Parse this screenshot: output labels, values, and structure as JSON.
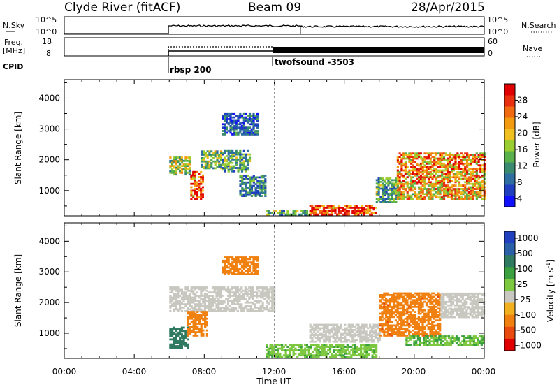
{
  "header": {
    "station": "Clyde River (fitACF)",
    "beam": "Beam 09",
    "date": "28/Apr/2015"
  },
  "noise_panel": {
    "left_label": "N.Sky",
    "left_ticks": [
      "10^5",
      "10^0"
    ],
    "right_label": "N.Search",
    "right_ticks": [
      "10^5",
      "10^0"
    ]
  },
  "freq_panel": {
    "left_label_1": "Freq.",
    "left_label_2": "[MHz]",
    "left_ticks": [
      "18",
      "8"
    ],
    "right_label": "Nave",
    "right_ticks": [
      "60",
      "0"
    ]
  },
  "cpid": {
    "label": "CPID",
    "modes": [
      {
        "name": "rbsp 200",
        "start": 6.0
      },
      {
        "name": "twofsound -3503",
        "start": 12.0
      }
    ]
  },
  "x_axis": {
    "label": "Time UT",
    "ticks": [
      "00:00",
      "04:00",
      "08:00",
      "12:00",
      "16:00",
      "20:00",
      "00:00"
    ],
    "range": [
      0,
      24
    ]
  },
  "y_axis": {
    "label": "Slant Range [km]",
    "ticks": [
      "1000",
      "2000",
      "3000",
      "4000"
    ],
    "range": [
      180,
      4600
    ]
  },
  "power_colorbar": {
    "label": "Power [dB]",
    "ticks": [
      "4",
      "8",
      "12",
      "16",
      "20",
      "24",
      "28"
    ],
    "colors": [
      "#1010ff",
      "#1f3fbf",
      "#2e6ea0",
      "#3a8a70",
      "#5ab04a",
      "#9acd32",
      "#f0c020",
      "#f29a10",
      "#ef6a10",
      "#e83010",
      "#e00000"
    ]
  },
  "velocity_colorbar": {
    "label": "Velocity [m s",
    "label_exp": "-1",
    "label_close": "]",
    "ticks": [
      "1000",
      "500",
      "100",
      "25",
      "-25",
      "-100",
      "-500",
      "-1000"
    ],
    "colors": [
      "#2040c0",
      "#2a60a8",
      "#2f7a60",
      "#3aa040",
      "#7dc840",
      "#c8c8c0",
      "#f0b020",
      "#f08010",
      "#e84a10",
      "#e00000"
    ]
  },
  "chart_data": [
    {
      "type": "heatmap",
      "title": "Power",
      "xlabel": "Time UT",
      "ylabel": "Slant Range [km]",
      "xlim": [
        0,
        24
      ],
      "ylim": [
        180,
        4600
      ],
      "colorbar_label": "Power [dB]",
      "regions": [
        {
          "t0": 6.0,
          "t1": 7.2,
          "r0": 1500,
          "r1": 2100,
          "value": 16
        },
        {
          "t0": 7.2,
          "t1": 7.9,
          "r0": 700,
          "r1": 1600,
          "value": 26
        },
        {
          "t0": 7.8,
          "t1": 9.0,
          "r0": 1700,
          "r1": 2300,
          "value": 14
        },
        {
          "t0": 9.0,
          "t1": 10.6,
          "r0": 1600,
          "r1": 2300,
          "value": 12
        },
        {
          "t0": 9.0,
          "t1": 11.0,
          "r0": 2800,
          "r1": 3500,
          "value": 8
        },
        {
          "t0": 10.0,
          "t1": 11.5,
          "r0": 800,
          "r1": 1500,
          "value": 10
        },
        {
          "t0": 11.5,
          "t1": 14.0,
          "r0": 200,
          "r1": 350,
          "value": 12
        },
        {
          "t0": 14.0,
          "t1": 17.8,
          "r0": 200,
          "r1": 500,
          "value": 26
        },
        {
          "t0": 17.8,
          "t1": 19.0,
          "r0": 600,
          "r1": 1400,
          "value": 12
        },
        {
          "t0": 19.0,
          "t1": 24.0,
          "r0": 700,
          "r1": 1300,
          "value": 20
        },
        {
          "t0": 19.0,
          "t1": 24.0,
          "r0": 1300,
          "r1": 2200,
          "value": 22
        }
      ]
    },
    {
      "type": "heatmap",
      "title": "Velocity",
      "xlabel": "Time UT",
      "ylabel": "Slant Range [km]",
      "xlim": [
        0,
        24
      ],
      "ylim": [
        180,
        4600
      ],
      "colorbar_label": "Velocity [m s-1]",
      "regions": [
        {
          "t0": 6.0,
          "t1": 7.0,
          "r0": 500,
          "r1": 1200,
          "value": 300
        },
        {
          "t0": 6.0,
          "t1": 12.0,
          "r0": 1700,
          "r1": 2500,
          "value": 0
        },
        {
          "t0": 7.0,
          "t1": 8.2,
          "r0": 900,
          "r1": 1700,
          "value": -300
        },
        {
          "t0": 9.0,
          "t1": 11.0,
          "r0": 2900,
          "r1": 3500,
          "value": -200
        },
        {
          "t0": 11.5,
          "t1": 17.8,
          "r0": 200,
          "r1": 600,
          "value": 50
        },
        {
          "t0": 14.0,
          "t1": 18.0,
          "r0": 700,
          "r1": 1300,
          "value": 0
        },
        {
          "t0": 18.0,
          "t1": 21.5,
          "r0": 900,
          "r1": 2300,
          "value": -400
        },
        {
          "t0": 21.5,
          "t1": 24.0,
          "r0": 1500,
          "r1": 2300,
          "value": 0
        },
        {
          "t0": 19.5,
          "t1": 24.0,
          "r0": 600,
          "r1": 900,
          "value": 60
        }
      ]
    }
  ]
}
